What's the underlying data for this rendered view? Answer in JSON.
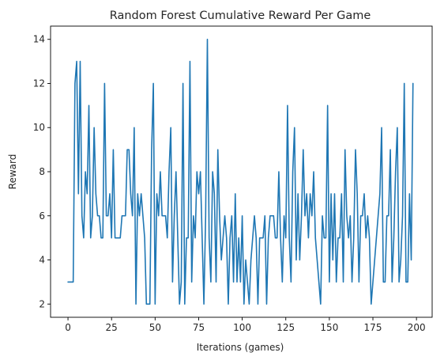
{
  "chart_data": {
    "type": "line",
    "title": "Random Forest Cumulative Reward Per Game",
    "xlabel": "Iterations (games)",
    "ylabel": "Reward",
    "xlim": [
      -10,
      209
    ],
    "ylim": [
      1.4,
      14.6
    ],
    "xticks": [
      0,
      25,
      50,
      75,
      100,
      125,
      150,
      175,
      200
    ],
    "yticks": [
      2,
      4,
      6,
      8,
      10,
      12,
      14
    ],
    "grid": false,
    "line_color": "#1f77b4",
    "series": [
      {
        "values": [
          3,
          3,
          3,
          3,
          12,
          13,
          7,
          13,
          6,
          5,
          8,
          7,
          11,
          5,
          6,
          10,
          7,
          6,
          6,
          5,
          5,
          12,
          6,
          6,
          7,
          5,
          9,
          5,
          5,
          5,
          5,
          6,
          6,
          6,
          9,
          9,
          7,
          6,
          10,
          2,
          7,
          6,
          7,
          6,
          5,
          2,
          2,
          2,
          9,
          12,
          2,
          7,
          6,
          8,
          6,
          6,
          6,
          5,
          8,
          10,
          3,
          6,
          8,
          5,
          2,
          3,
          12,
          2,
          5,
          5,
          13,
          3,
          6,
          5,
          8,
          7,
          8,
          5,
          2,
          6,
          14,
          5,
          3,
          8,
          7,
          3,
          9,
          6,
          4,
          5,
          6,
          5,
          2,
          5,
          6,
          3,
          7,
          3,
          5,
          3,
          6,
          2,
          4,
          3,
          2,
          4,
          5,
          6,
          5,
          2,
          5,
          5,
          5,
          6,
          2,
          5,
          6,
          6,
          6,
          5,
          5,
          8,
          5,
          3,
          6,
          5,
          11,
          5,
          3,
          8,
          10,
          4,
          7,
          4,
          6,
          9,
          6,
          7,
          5,
          7,
          6,
          8,
          5,
          4,
          3,
          2,
          6,
          5,
          5,
          11,
          3,
          7,
          4,
          7,
          3,
          5,
          5,
          7,
          3,
          9,
          6,
          5,
          6,
          3,
          5,
          9,
          7,
          3,
          6,
          6,
          7,
          5,
          6,
          5,
          2,
          3,
          4,
          5,
          6,
          7,
          10,
          3,
          3,
          6,
          6,
          9,
          3,
          5,
          8,
          10,
          3,
          4,
          6,
          12,
          3,
          3,
          7,
          4,
          12
        ]
      }
    ]
  }
}
